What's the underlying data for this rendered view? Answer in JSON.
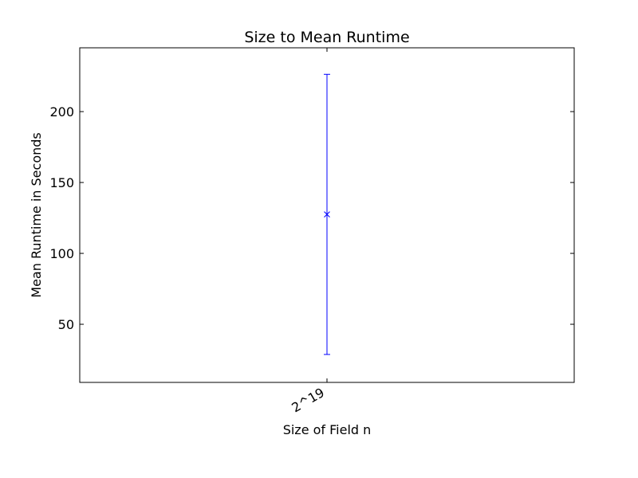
{
  "chart_data": {
    "type": "errorbar",
    "title": "Size to Mean Runtime",
    "xlabel": "Size of Field n",
    "ylabel": "Mean Runtime in Seconds",
    "categories": [
      "2^19"
    ],
    "series": [
      {
        "marker": "x",
        "color": "#0000ff",
        "points": [
          {
            "x": "2^19",
            "y": 127.5,
            "yerr_low": 28.7,
            "yerr_high": 226.3
          }
        ]
      }
    ],
    "ylim": [
      9,
      245
    ],
    "yticks": [
      50,
      100,
      150,
      200
    ],
    "grid": false,
    "legend": "none"
  }
}
